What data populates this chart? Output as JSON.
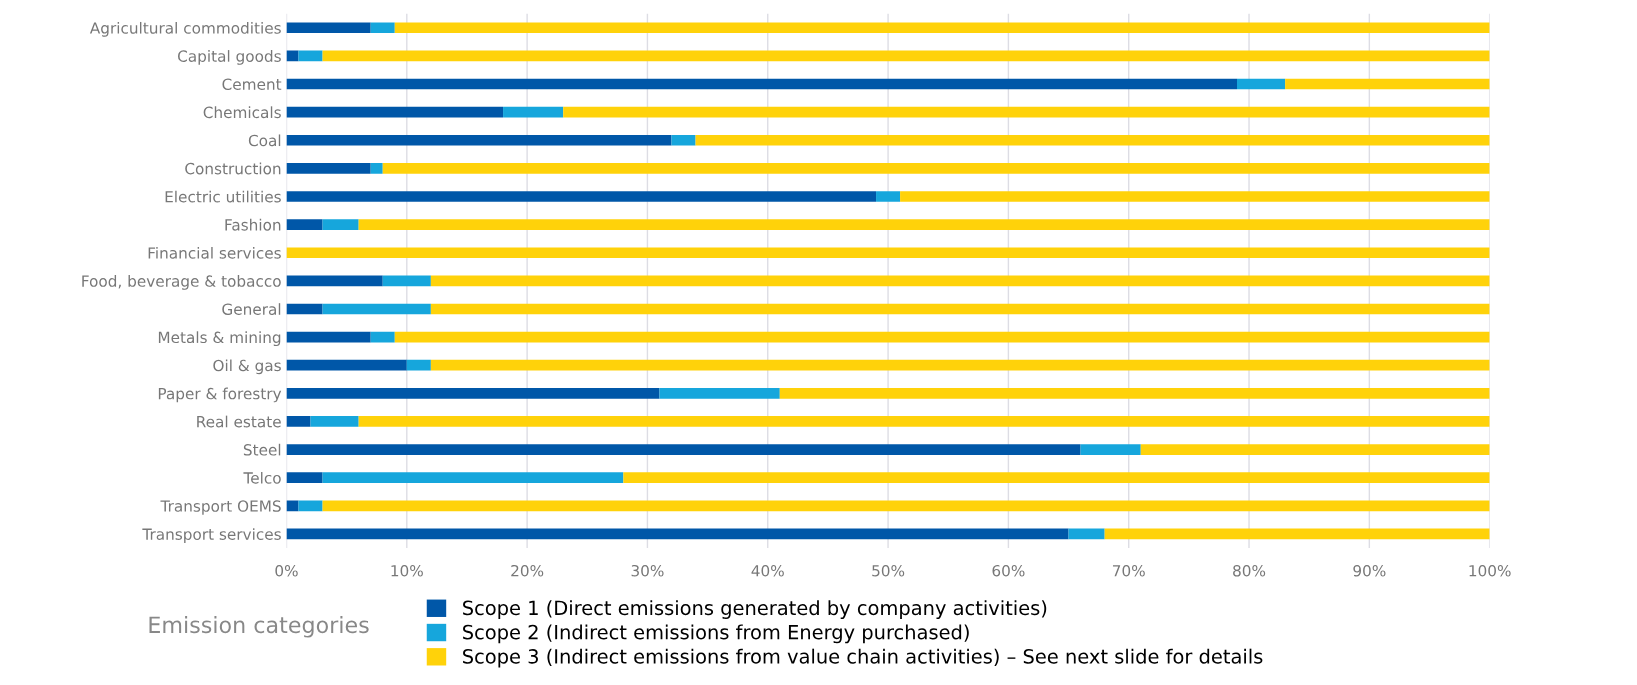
{
  "chart_data": {
    "type": "bar",
    "orientation": "horizontal",
    "stacked": true,
    "categories": [
      "Agricultural commodities",
      "Capital goods",
      "Cement",
      "Chemicals",
      "Coal",
      "Construction",
      "Electric utilities",
      "Fashion",
      "Financial services",
      "Food, beverage & tobacco",
      "General",
      "Metals & mining",
      "Oil & gas",
      "Paper & forestry",
      "Real estate",
      "Steel",
      "Telco",
      "Transport OEMS",
      "Transport services"
    ],
    "series": [
      {
        "name": "Scope 1 (Direct emissions generated by company activities)",
        "color": "#0057a8",
        "values": [
          7,
          1,
          79,
          18,
          32,
          7,
          49,
          3,
          0,
          8,
          3,
          7,
          10,
          31,
          2,
          66,
          3,
          1,
          65
        ]
      },
      {
        "name": "Scope 2 (Indirect emissions from Energy purchased)",
        "color": "#16a6dc",
        "values": [
          2,
          2,
          4,
          5,
          2,
          1,
          2,
          3,
          0,
          4,
          9,
          2,
          2,
          10,
          4,
          5,
          25,
          2,
          3
        ]
      },
      {
        "name": "Scope 3 (Indirect emissions from value chain activities) – See next slide for details",
        "color": "#ffd20a",
        "values": [
          91,
          97,
          17,
          77,
          66,
          92,
          49,
          94,
          100,
          88,
          88,
          91,
          88,
          59,
          94,
          29,
          72,
          97,
          32
        ]
      }
    ],
    "legend_title": "Emission categories",
    "legend": "bottom",
    "grid": "x",
    "xlim": [
      0,
      100
    ],
    "xticks": [
      {
        "value": 0,
        "label": "0%"
      },
      {
        "value": 10,
        "label": "10%"
      },
      {
        "value": 20,
        "label": "20%"
      },
      {
        "value": 30,
        "label": "30%"
      },
      {
        "value": 40,
        "label": "40%"
      },
      {
        "value": 50,
        "label": "50%"
      },
      {
        "value": 60,
        "label": "60%"
      },
      {
        "value": 70,
        "label": "70%"
      },
      {
        "value": 80,
        "label": "80%"
      },
      {
        "value": 90,
        "label": "90%"
      },
      {
        "value": 100,
        "label": "100%"
      }
    ]
  }
}
